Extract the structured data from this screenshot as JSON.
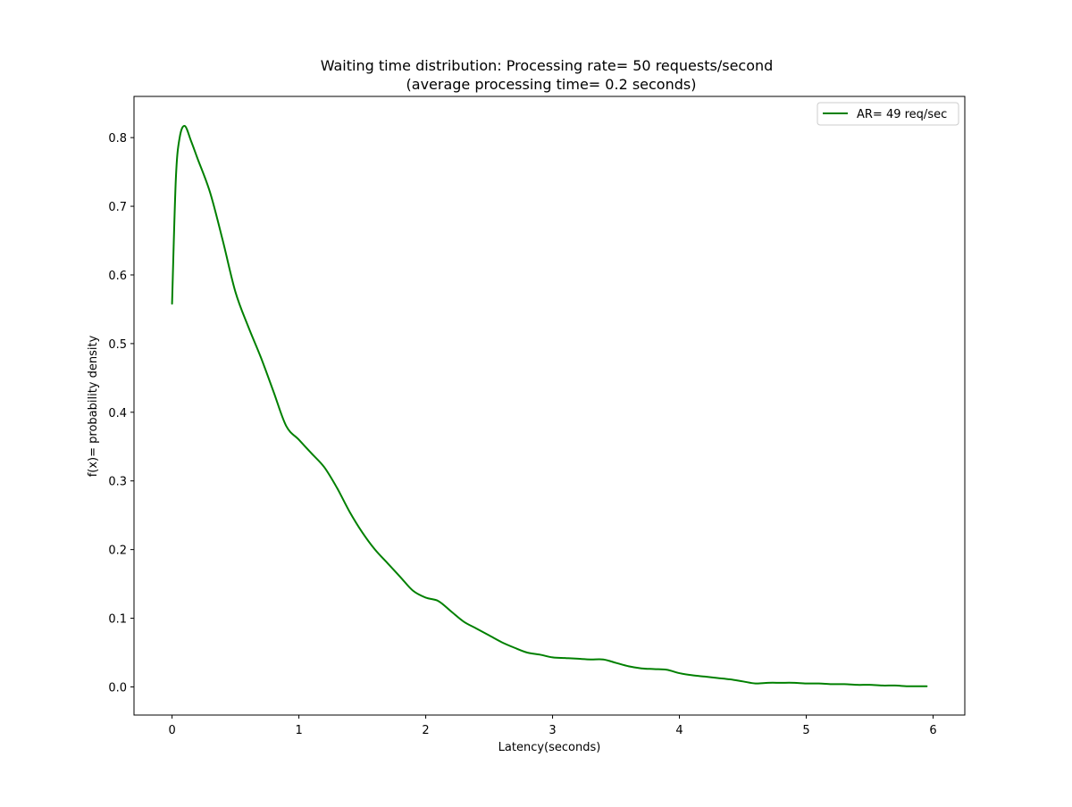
{
  "chart_data": {
    "type": "line",
    "title": "Waiting time distribution: Processing rate= 50 requests/second",
    "subtitle": "(average processing time= 0.2 seconds)",
    "xlabel": "Latency(seconds)",
    "ylabel": "f(x)= probability density",
    "xlim": [
      -0.3,
      6.25
    ],
    "ylim": [
      -0.041,
      0.86
    ],
    "xticks": [
      0,
      1,
      2,
      3,
      4,
      5,
      6
    ],
    "xtick_labels": [
      "0",
      "1",
      "2",
      "3",
      "4",
      "5",
      "6"
    ],
    "yticks": [
      0.0,
      0.1,
      0.2,
      0.3,
      0.4,
      0.5,
      0.6,
      0.7,
      0.8
    ],
    "ytick_labels": [
      "0.0",
      "0.1",
      "0.2",
      "0.3",
      "0.4",
      "0.5",
      "0.6",
      "0.7",
      "0.8"
    ],
    "grid": false,
    "legend_position": "top-right",
    "series": [
      {
        "name": "AR= 49 req/sec",
        "color": "#008000",
        "x": [
          0.0,
          0.03,
          0.06,
          0.1,
          0.15,
          0.2,
          0.3,
          0.4,
          0.5,
          0.6,
          0.7,
          0.8,
          0.9,
          1.0,
          1.1,
          1.2,
          1.3,
          1.4,
          1.5,
          1.6,
          1.7,
          1.8,
          1.9,
          2.0,
          2.1,
          2.2,
          2.3,
          2.4,
          2.5,
          2.6,
          2.7,
          2.8,
          2.9,
          3.0,
          3.1,
          3.2,
          3.3,
          3.4,
          3.5,
          3.6,
          3.7,
          3.8,
          3.9,
          4.0,
          4.1,
          4.2,
          4.3,
          4.4,
          4.5,
          4.6,
          4.7,
          4.8,
          4.9,
          5.0,
          5.1,
          5.2,
          5.3,
          5.4,
          5.5,
          5.6,
          5.7,
          5.8,
          5.9,
          5.95
        ],
        "y": [
          0.558,
          0.74,
          0.8,
          0.817,
          0.795,
          0.77,
          0.72,
          0.65,
          0.575,
          0.525,
          0.48,
          0.43,
          0.38,
          0.36,
          0.34,
          0.32,
          0.29,
          0.255,
          0.225,
          0.2,
          0.18,
          0.16,
          0.14,
          0.13,
          0.125,
          0.11,
          0.095,
          0.085,
          0.075,
          0.065,
          0.057,
          0.05,
          0.047,
          0.043,
          0.042,
          0.041,
          0.04,
          0.04,
          0.035,
          0.03,
          0.027,
          0.026,
          0.025,
          0.02,
          0.017,
          0.015,
          0.013,
          0.011,
          0.008,
          0.005,
          0.006,
          0.006,
          0.006,
          0.005,
          0.005,
          0.004,
          0.004,
          0.003,
          0.003,
          0.002,
          0.002,
          0.001,
          0.001,
          0.001
        ]
      }
    ]
  }
}
